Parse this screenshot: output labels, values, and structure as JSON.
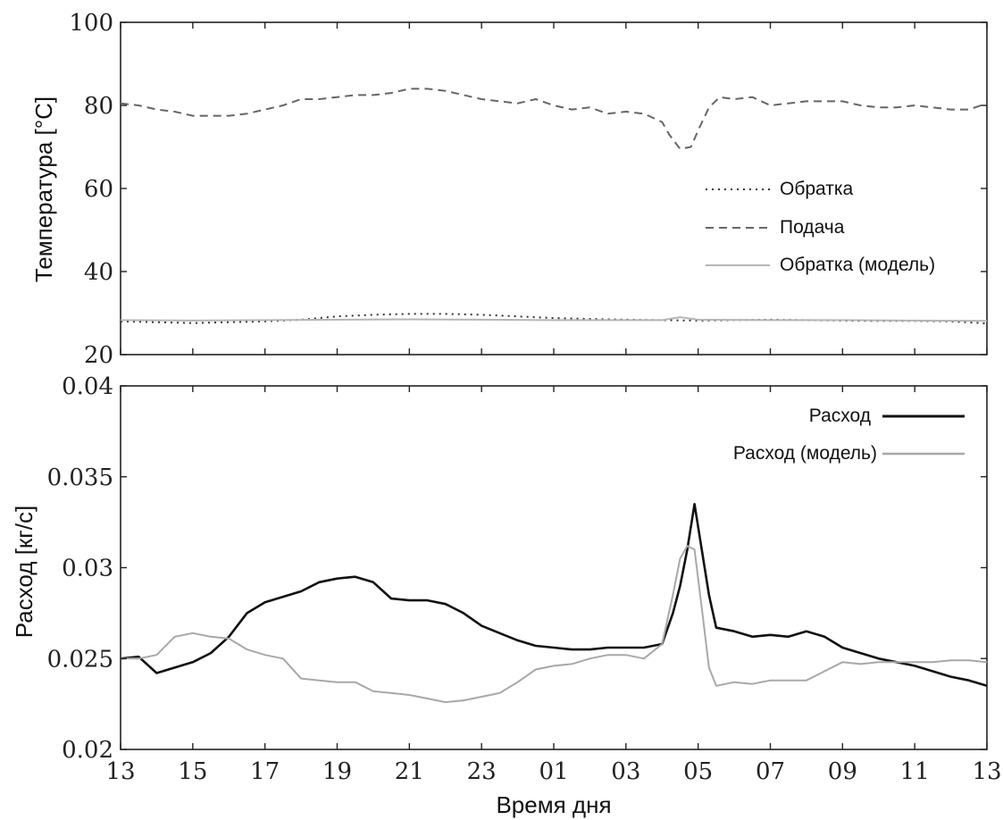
{
  "chart_data": [
    {
      "type": "line",
      "ylabel": "Температура [°C]",
      "xlabel": "",
      "ylim": [
        20,
        100
      ],
      "yticks": [
        "20",
        "40",
        "60",
        "80",
        "100"
      ],
      "x_tick_labels": [
        "13",
        "15",
        "17",
        "19",
        "21",
        "23",
        "01",
        "03",
        "05",
        "07",
        "09",
        "11",
        "13"
      ],
      "x_hours": [
        0,
        24
      ],
      "grid": false,
      "legend_placement": "right-center",
      "series": [
        {
          "name": "Обратка",
          "style": "dotted",
          "color": "#333333",
          "x": [
            0,
            1,
            2,
            3,
            4,
            5,
            6,
            7,
            8,
            9,
            10,
            11,
            12,
            13,
            14,
            15,
            16,
            17,
            18,
            19,
            20,
            21,
            22,
            23,
            24
          ],
          "values": [
            28,
            27.8,
            27.6,
            27.8,
            28,
            28.4,
            29.2,
            29.6,
            29.8,
            29.8,
            29.6,
            29.2,
            28.8,
            28.6,
            28.4,
            28.3,
            28.2,
            28.3,
            28.4,
            28.3,
            28.2,
            28.1,
            28.1,
            28.0,
            27.5
          ]
        },
        {
          "name": "Подача",
          "style": "dashed",
          "color": "#666666",
          "x": [
            0,
            0.5,
            1,
            1.5,
            2,
            2.5,
            3,
            3.5,
            4,
            4.5,
            5,
            5.5,
            6,
            6.5,
            7,
            7.5,
            8,
            8.5,
            9,
            9.5,
            10,
            10.5,
            11,
            11.5,
            12,
            12.5,
            13,
            13.5,
            14,
            14.5,
            15,
            15.2,
            15.5,
            15.8,
            16,
            16.3,
            16.6,
            17,
            17.5,
            18,
            18.5,
            19,
            19.5,
            20,
            20.5,
            21,
            21.5,
            22,
            22.5,
            23,
            23.5,
            24
          ],
          "values": [
            80.5,
            80,
            79,
            78.5,
            77.5,
            77.5,
            77.5,
            78,
            79,
            80,
            81.5,
            81.5,
            82,
            82.5,
            82.5,
            83,
            84,
            84,
            83.5,
            82.5,
            81.5,
            81,
            80.5,
            81.5,
            80,
            79,
            79.5,
            78,
            78.5,
            78,
            76,
            73,
            69.5,
            70,
            74,
            79.5,
            82,
            81.5,
            82,
            80,
            80.5,
            81,
            81,
            81,
            80,
            79.5,
            79.5,
            80,
            79.5,
            79,
            79,
            80.5
          ]
        },
        {
          "name": "Обратка (модель)",
          "style": "solid",
          "color": "#b5b5b5",
          "x": [
            0,
            2,
            4,
            6,
            8,
            10,
            12,
            14,
            15,
            15.5,
            16,
            18,
            20,
            22,
            24
          ],
          "values": [
            28.3,
            28.2,
            28.3,
            28.4,
            28.5,
            28.4,
            28.3,
            28.3,
            28.3,
            29,
            28.4,
            28.3,
            28.3,
            28.2,
            28.1
          ]
        }
      ]
    },
    {
      "type": "line",
      "ylabel": "Расход [кг/с]",
      "xlabel": "Время дня",
      "ylim": [
        0.02,
        0.04
      ],
      "yticks": [
        "0.02",
        "0.025",
        "0.03",
        "0.035",
        "0.04"
      ],
      "x_tick_labels": [
        "13",
        "15",
        "17",
        "19",
        "21",
        "23",
        "01",
        "03",
        "05",
        "07",
        "09",
        "11",
        "13"
      ],
      "x_hours": [
        0,
        24
      ],
      "grid": false,
      "legend_placement": "top-right",
      "series": [
        {
          "name": "Расход",
          "style": "solid",
          "color": "#111111",
          "x": [
            0,
            0.5,
            1,
            1.5,
            2,
            2.5,
            3,
            3.5,
            4,
            4.5,
            5,
            5.5,
            6,
            6.5,
            7,
            7.5,
            8,
            8.5,
            9,
            9.5,
            10,
            10.5,
            11,
            11.5,
            12,
            12.5,
            13,
            13.5,
            14,
            14.5,
            15,
            15.3,
            15.5,
            15.7,
            15.9,
            16.1,
            16.3,
            16.5,
            17,
            17.5,
            18,
            18.5,
            19,
            19.5,
            20,
            20.5,
            21,
            21.5,
            22,
            22.5,
            23,
            23.5,
            24
          ],
          "values": [
            0.025,
            0.0251,
            0.0242,
            0.0245,
            0.0248,
            0.0253,
            0.0262,
            0.0275,
            0.0281,
            0.0284,
            0.0287,
            0.0292,
            0.0294,
            0.0295,
            0.0292,
            0.0283,
            0.0282,
            0.0282,
            0.028,
            0.0275,
            0.0268,
            0.0264,
            0.026,
            0.0257,
            0.0256,
            0.0255,
            0.0255,
            0.0256,
            0.0256,
            0.0256,
            0.0258,
            0.0275,
            0.029,
            0.031,
            0.0335,
            0.031,
            0.0285,
            0.0267,
            0.0265,
            0.0262,
            0.0263,
            0.0262,
            0.0265,
            0.0262,
            0.0256,
            0.0253,
            0.025,
            0.0248,
            0.0246,
            0.0243,
            0.024,
            0.0238,
            0.0235
          ]
        },
        {
          "name": "Расход (модель)",
          "style": "solid",
          "color": "#a8a8a8",
          "x": [
            0,
            0.5,
            1,
            1.5,
            2,
            2.5,
            3,
            3.5,
            4,
            4.5,
            5,
            5.5,
            6,
            6.5,
            7,
            7.5,
            8,
            8.5,
            9,
            9.5,
            10,
            10.5,
            11,
            11.5,
            12,
            12.5,
            13,
            13.5,
            14,
            14.5,
            15,
            15.3,
            15.5,
            15.7,
            15.9,
            16.1,
            16.3,
            16.5,
            17,
            17.5,
            18,
            18.5,
            19,
            19.5,
            20,
            20.5,
            21,
            21.5,
            22,
            22.5,
            23,
            23.5,
            24
          ],
          "values": [
            0.025,
            0.025,
            0.0252,
            0.0262,
            0.0264,
            0.0262,
            0.0261,
            0.0255,
            0.0252,
            0.025,
            0.0239,
            0.0238,
            0.0237,
            0.0237,
            0.0232,
            0.0231,
            0.023,
            0.0228,
            0.0226,
            0.0227,
            0.0229,
            0.0231,
            0.0237,
            0.0244,
            0.0246,
            0.0247,
            0.025,
            0.0252,
            0.0252,
            0.025,
            0.0258,
            0.0285,
            0.0305,
            0.0312,
            0.031,
            0.0278,
            0.0245,
            0.0235,
            0.0237,
            0.0236,
            0.0238,
            0.0238,
            0.0238,
            0.0243,
            0.0248,
            0.0247,
            0.0248,
            0.0248,
            0.0248,
            0.0248,
            0.0249,
            0.0249,
            0.0248
          ]
        }
      ]
    }
  ]
}
